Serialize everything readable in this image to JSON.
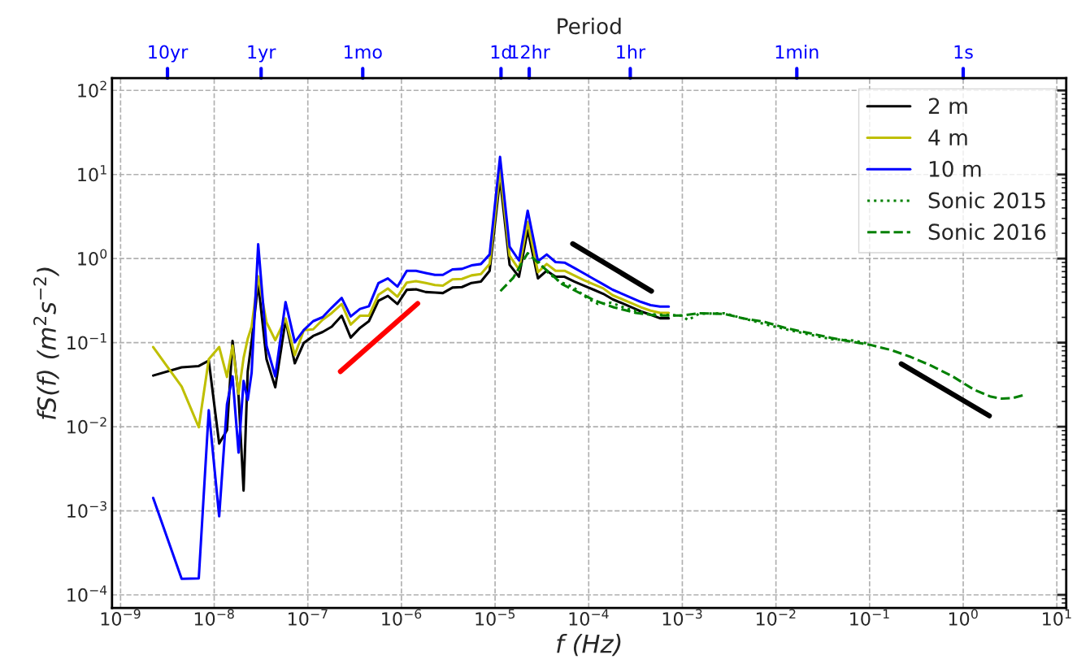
{
  "chart_data": {
    "type": "line",
    "xlabel": "f (Hz)",
    "ylabel": "fS(f) (m$^{2}$s$^{−2}$)",
    "annotations": [
      "Period"
    ],
    "ref_lines": [
      {
        "axis": "x",
        "value": 3.17e-09,
        "label": "10yr",
        "color": "#0000ff"
      },
      {
        "axis": "x",
        "value": 3.17e-08,
        "label": "1yr",
        "color": "#0000ff"
      },
      {
        "axis": "x",
        "value": 3.86e-07,
        "label": "1mo",
        "color": "#0000ff"
      },
      {
        "axis": "x",
        "value": 1.157e-05,
        "label": "1d",
        "color": "#0000ff"
      },
      {
        "axis": "x",
        "value": 2.315e-05,
        "label": "12hr",
        "color": "#0000ff"
      },
      {
        "axis": "x",
        "value": 0.000278,
        "label": "1hr",
        "color": "#0000ff"
      },
      {
        "axis": "x",
        "value": 0.0167,
        "label": "1min",
        "color": "#0000ff"
      },
      {
        "axis": "x",
        "value": 1,
        "label": "1s",
        "color": "#0000ff"
      }
    ],
    "log": "xy",
    "grid": true,
    "legend": "top right",
    "xlim": [
      8.1e-10,
      12.6
    ],
    "ylim": [
      7e-05,
      140
    ],
    "xticks": [
      {
        "value": 1e-09,
        "label": "10$^{−9}$"
      },
      {
        "value": 1e-08,
        "label": "10$^{−8}$"
      },
      {
        "value": 1e-07,
        "label": "10$^{−7}$"
      },
      {
        "value": 1e-06,
        "label": "10$^{−6}$"
      },
      {
        "value": 1e-05,
        "label": "10$^{−5}$"
      },
      {
        "value": 0.0001,
        "label": "10$^{−4}$"
      },
      {
        "value": 0.001,
        "label": "10$^{−3}$"
      },
      {
        "value": 0.01,
        "label": "10$^{−2}$"
      },
      {
        "value": 0.1,
        "label": "10$^{−1}$"
      },
      {
        "value": 1,
        "label": "10$^{0}$"
      },
      {
        "value": 10,
        "label": "10$^{1}$"
      }
    ],
    "yticks": [
      {
        "value": 0.0001,
        "label": "10$^{−4}$"
      },
      {
        "value": 0.001,
        "label": "10$^{−3}$"
      },
      {
        "value": 0.01,
        "label": "10$^{−2}$"
      },
      {
        "value": 0.1,
        "label": "10$^{−1}$"
      },
      {
        "value": 1,
        "label": "10$^{0}$"
      },
      {
        "value": 10,
        "label": "10$^{1}$"
      },
      {
        "value": 100,
        "label": "10$^{2}$"
      }
    ],
    "series": [
      {
        "name": "2 m",
        "color": "#000000",
        "line_style": "solid",
        "x": [
          2.23e-09,
          4.49e-09,
          6.84e-09,
          8.75e-09,
          1.13e-08,
          1.37e-08,
          1.57e-08,
          1.82e-08,
          2.06e-08,
          2.28e-08,
          2.51e-08,
          2.95e-08,
          3.62e-08,
          4.49e-08,
          5.78e-08,
          7.26e-08,
          9.06e-08,
          1.14e-07,
          1.44e-07,
          1.8e-07,
          2.3e-07,
          2.87e-07,
          3.61e-07,
          4.49e-07,
          5.68e-07,
          7.16e-07,
          9.06e-07,
          1.14e-06,
          1.43e-06,
          1.82e-06,
          2.28e-06,
          2.77e-06,
          3.51e-06,
          4.43e-06,
          5.6e-06,
          7.06e-06,
          8.75e-06,
          1.13e-05,
          1.43e-05,
          1.8e-05,
          2.23e-05,
          2.87e-05,
          3.56e-05,
          4.43e-05,
          5.52e-05,
          7.06e-05,
          8.93e-05,
          0.000113,
          0.000143,
          0.00018,
          0.000228,
          0.000287,
          0.000362,
          0.000458,
          0.000578,
          0.000716
        ],
        "values": [
          0.0406,
          0.0508,
          0.0527,
          0.0611,
          0.0063,
          0.0091,
          0.105,
          0.0232,
          0.00174,
          0.0454,
          0.103,
          0.511,
          0.0635,
          0.0294,
          0.184,
          0.0568,
          0.0993,
          0.12,
          0.134,
          0.155,
          0.209,
          0.115,
          0.15,
          0.18,
          0.315,
          0.36,
          0.288,
          0.425,
          0.431,
          0.4,
          0.394,
          0.389,
          0.452,
          0.458,
          0.513,
          0.532,
          0.716,
          8.95,
          0.843,
          0.608,
          2.18,
          0.582,
          0.716,
          0.608,
          0.608,
          0.532,
          0.476,
          0.426,
          0.381,
          0.328,
          0.294,
          0.263,
          0.235,
          0.215,
          0.195,
          0.195
        ]
      },
      {
        "name": "4 m",
        "color": "#bfbf00",
        "line_style": "solid",
        "x": [
          2.23e-09,
          4.49e-09,
          6.84e-09,
          8.75e-09,
          1.13e-08,
          1.37e-08,
          1.57e-08,
          1.82e-08,
          2.06e-08,
          2.28e-08,
          2.51e-08,
          2.95e-08,
          3.62e-08,
          4.49e-08,
          5.78e-08,
          7.26e-08,
          9.06e-08,
          1.14e-07,
          1.44e-07,
          1.8e-07,
          2.3e-07,
          2.87e-07,
          3.61e-07,
          4.49e-07,
          5.68e-07,
          7.16e-07,
          9.06e-07,
          1.14e-06,
          1.43e-06,
          1.82e-06,
          2.28e-06,
          2.77e-06,
          3.51e-06,
          4.43e-06,
          5.6e-06,
          7.06e-06,
          8.75e-06,
          1.13e-05,
          1.43e-05,
          1.8e-05,
          2.23e-05,
          2.87e-05,
          3.56e-05,
          4.43e-05,
          5.52e-05,
          7.06e-05,
          8.93e-05,
          0.000113,
          0.000143,
          0.00018,
          0.000228,
          0.000287,
          0.000362,
          0.000458,
          0.000578,
          0.000716
        ],
        "values": [
          0.0887,
          0.0301,
          0.00986,
          0.0635,
          0.0887,
          0.0391,
          0.0921,
          0.0246,
          0.0659,
          0.111,
          0.155,
          0.616,
          0.174,
          0.107,
          0.194,
          0.071,
          0.141,
          0.144,
          0.187,
          0.225,
          0.288,
          0.164,
          0.209,
          0.209,
          0.371,
          0.441,
          0.352,
          0.519,
          0.539,
          0.511,
          0.485,
          0.476,
          0.565,
          0.573,
          0.631,
          0.655,
          0.862,
          11.2,
          1.08,
          0.743,
          2.73,
          0.69,
          0.862,
          0.716,
          0.716,
          0.626,
          0.552,
          0.494,
          0.442,
          0.367,
          0.328,
          0.294,
          0.263,
          0.24,
          0.226,
          0.226
        ]
      },
      {
        "name": "10 m",
        "color": "#0000ff",
        "line_style": "solid",
        "x": [
          2.23e-09,
          4.49e-09,
          6.84e-09,
          8.75e-09,
          1.13e-08,
          1.37e-08,
          1.57e-08,
          1.82e-08,
          2.06e-08,
          2.28e-08,
          2.51e-08,
          2.95e-08,
          3.62e-08,
          4.49e-08,
          5.78e-08,
          7.26e-08,
          9.06e-08,
          1.14e-07,
          1.44e-07,
          1.8e-07,
          2.3e-07,
          2.87e-07,
          3.61e-07,
          4.49e-07,
          5.68e-07,
          7.16e-07,
          9.06e-07,
          1.14e-06,
          1.43e-06,
          1.82e-06,
          2.28e-06,
          2.77e-06,
          3.51e-06,
          4.43e-06,
          5.6e-06,
          7.06e-06,
          8.75e-06,
          1.13e-05,
          1.43e-05,
          1.8e-05,
          2.23e-05,
          2.87e-05,
          3.56e-05,
          4.43e-05,
          5.52e-05,
          7.06e-05,
          8.93e-05,
          0.000113,
          0.000143,
          0.00018,
          0.000228,
          0.000287,
          0.000362,
          0.000458,
          0.000578,
          0.000716
        ],
        "values": [
          0.00142,
          0.000155,
          0.000157,
          0.0157,
          0.00086,
          0.0186,
          0.0397,
          0.00493,
          0.035,
          0.0208,
          0.0437,
          1.48,
          0.0921,
          0.0397,
          0.304,
          0.101,
          0.141,
          0.18,
          0.201,
          0.261,
          0.34,
          0.205,
          0.252,
          0.271,
          0.511,
          0.581,
          0.464,
          0.715,
          0.715,
          0.673,
          0.639,
          0.64,
          0.743,
          0.754,
          0.83,
          0.862,
          1.12,
          16.2,
          1.38,
          0.95,
          3.72,
          0.929,
          1.12,
          0.908,
          0.895,
          0.771,
          0.665,
          0.573,
          0.494,
          0.426,
          0.381,
          0.341,
          0.305,
          0.279,
          0.269,
          0.269
        ]
      },
      {
        "name": "Sonic 2015",
        "color": "#008000",
        "line_style": "dotted",
        "x": [
          2.87e-05,
          3.75e-05,
          4.9e-05,
          6.84e-05,
          9.55e-05,
          0.000125,
          0.000174,
          0.00026,
          0.000443,
          0.000986,
          0.00115,
          0.0015,
          0.00276,
          0.00444,
          0.00762,
          0.0131,
          0.0241,
          0.0387,
          0.0667,
          0.1
        ],
        "values": [
          0.929,
          0.665,
          0.532,
          0.458,
          0.341,
          0.289,
          0.298,
          0.253,
          0.218,
          0.21,
          0.185,
          0.22,
          0.224,
          0.195,
          0.166,
          0.143,
          0.123,
          0.11,
          0.106,
          0.0966
        ]
      },
      {
        "name": "Sonic 2016",
        "color": "#008000",
        "line_style": "dashed",
        "x": [
          1.14e-05,
          1.57e-05,
          2.23e-05,
          2.87e-05,
          3.75e-05,
          5.24e-05,
          7.31e-05,
          0.000117,
          0.000186,
          0.000317,
          0.000541,
          0.000986,
          0.0015,
          0.00276,
          0.00444,
          0.00762,
          0.0131,
          0.0241,
          0.0387,
          0.0667,
          0.1,
          0.172,
          0.276,
          0.444,
          0.762,
          1.31,
          1.97,
          2.58,
          3.38,
          4.59
        ],
        "values": [
          0.41,
          0.594,
          1.16,
          0.895,
          0.69,
          0.494,
          0.41,
          0.316,
          0.263,
          0.226,
          0.21,
          0.21,
          0.224,
          0.22,
          0.195,
          0.176,
          0.148,
          0.128,
          0.114,
          0.102,
          0.0946,
          0.0814,
          0.0675,
          0.0539,
          0.04,
          0.0275,
          0.0228,
          0.0216,
          0.0219,
          0.024
        ]
      },
      {
        "color": "#ff0000",
        "line_style": "solid",
        "x": [
          2.23e-07,
          1.49e-06
        ],
        "values": [
          0.0454,
          0.292
        ]
      },
      {
        "color": "#000000",
        "line_style": "solid",
        "x": [
          6.75e-05,
          0.000468
        ],
        "values": [
          1.5,
          0.41
        ]
      },
      {
        "color": "#000000",
        "line_style": "solid",
        "x": [
          0.218,
          1.9
        ],
        "values": [
          0.056,
          0.0135
        ]
      }
    ]
  }
}
